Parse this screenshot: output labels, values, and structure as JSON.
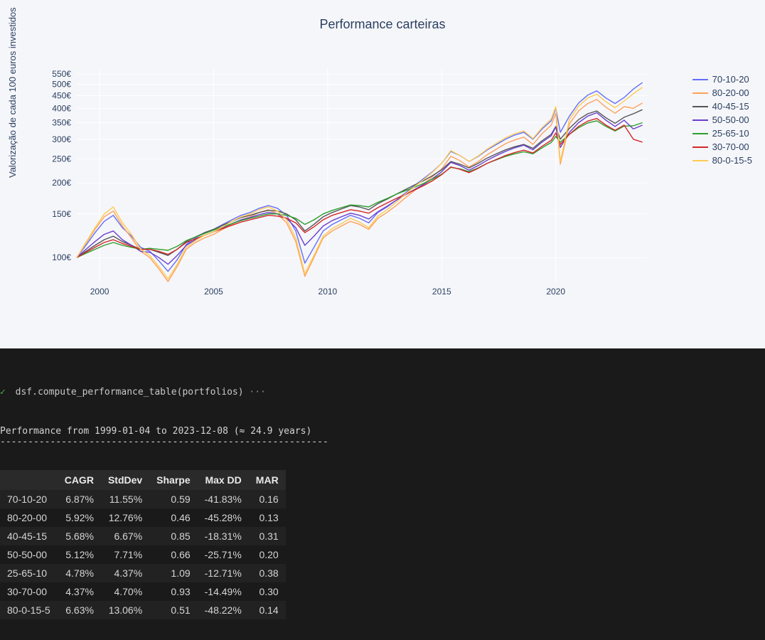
{
  "chart": {
    "type": "line",
    "title": "Performance carteiras",
    "ylabel": "Valorização de cada 100 euros investidos",
    "title_fontsize": 18,
    "label_fontsize": 13,
    "tick_fontsize": 12,
    "background_color": "#f5f6fa",
    "plot_background": "#f5f6fa",
    "grid_color": "#ffffff",
    "text_color": "#2a3f5f",
    "yscale": "log",
    "ylim": [
      80,
      580
    ],
    "yticks": [
      100,
      150,
      200,
      250,
      300,
      350,
      400,
      450,
      500,
      550
    ],
    "yticklabels": [
      "100€",
      "150€",
      "200€",
      "250€",
      "300€",
      "350€",
      "400€",
      "450€",
      "500€",
      "550€"
    ],
    "xlim": [
      1999,
      2024
    ],
    "xticks": [
      2000,
      2005,
      2010,
      2015,
      2020
    ],
    "xticklabels": [
      "2000",
      "2005",
      "2010",
      "2015",
      "2020"
    ],
    "line_width": 1.4,
    "series": [
      {
        "name": "70-10-20",
        "color": "#636efa",
        "x": [
          1999.0,
          1999.4,
          1999.8,
          2000.2,
          2000.6,
          2001.0,
          2001.4,
          2001.8,
          2002.2,
          2002.6,
          2003.0,
          2003.4,
          2003.8,
          2004.2,
          2004.6,
          2005.0,
          2005.4,
          2005.8,
          2006.2,
          2006.6,
          2007.0,
          2007.4,
          2007.8,
          2008.2,
          2008.6,
          2009.0,
          2009.4,
          2009.8,
          2010.2,
          2010.6,
          2011.0,
          2011.4,
          2011.8,
          2012.2,
          2012.6,
          2013.0,
          2013.4,
          2013.8,
          2014.2,
          2014.6,
          2015.0,
          2015.4,
          2015.8,
          2016.2,
          2016.6,
          2017.0,
          2017.4,
          2017.8,
          2018.2,
          2018.6,
          2019.0,
          2019.4,
          2019.8,
          2020.0,
          2020.2,
          2020.6,
          2021.0,
          2021.4,
          2021.8,
          2022.2,
          2022.6,
          2023.0,
          2023.4,
          2023.8
        ],
        "y": [
          100,
          112,
          126,
          140,
          148,
          132,
          122,
          110,
          106,
          97,
          88,
          98,
          113,
          120,
          126,
          130,
          136,
          142,
          148,
          152,
          158,
          162,
          158,
          148,
          128,
          95,
          110,
          128,
          136,
          142,
          148,
          144,
          138,
          152,
          160,
          170,
          182,
          195,
          208,
          222,
          240,
          268,
          258,
          244,
          256,
          272,
          286,
          300,
          312,
          320,
          300,
          330,
          356,
          400,
          320,
          372,
          420,
          452,
          470,
          440,
          418,
          442,
          478,
          508
        ]
      },
      {
        "name": "80-20-00",
        "color": "#ef553b",
        "x": [
          1999.0,
          1999.4,
          1999.8,
          2000.2,
          2000.6,
          2001.0,
          2001.4,
          2001.8,
          2002.2,
          2002.6,
          2003.0,
          2003.4,
          2003.8,
          2004.2,
          2004.6,
          2005.0,
          2005.4,
          2005.8,
          2006.2,
          2006.6,
          2007.0,
          2007.4,
          2007.8,
          2008.2,
          2008.6,
          2009.0,
          2009.4,
          2009.8,
          2010.2,
          2010.6,
          2011.0,
          2011.4,
          2011.8,
          2012.2,
          2012.6,
          2013.0,
          2013.4,
          2013.8,
          2014.2,
          2014.6,
          2015.0,
          2015.4,
          2015.8,
          2016.2,
          2016.6,
          2017.0,
          2017.4,
          2017.8,
          2018.2,
          2018.6,
          2019.0,
          2019.4,
          2019.8,
          2020.0,
          2020.2,
          2020.6,
          2021.0,
          2021.4,
          2021.8,
          2022.2,
          2022.6,
          2023.0,
          2023.4,
          2023.8
        ],
        "y": [
          100,
          114,
          130,
          146,
          154,
          134,
          120,
          106,
          100,
          90,
          80,
          92,
          108,
          115,
          120,
          124,
          130,
          136,
          142,
          146,
          152,
          156,
          150,
          138,
          116,
          84,
          100,
          120,
          128,
          134,
          140,
          136,
          130,
          144,
          152,
          162,
          174,
          186,
          198,
          212,
          228,
          256,
          246,
          232,
          244,
          260,
          274,
          288,
          298,
          306,
          286,
          316,
          342,
          382,
          238,
          346,
          390,
          418,
          434,
          404,
          382,
          406,
          400,
          420
        ]
      },
      {
        "name": "40-45-15",
        "color": "#00cc96",
        "x": [
          1999.0,
          1999.4,
          1999.8,
          2000.2,
          2000.6,
          2001.0,
          2001.4,
          2001.8,
          2002.2,
          2002.6,
          2003.0,
          2003.4,
          2003.8,
          2004.2,
          2004.6,
          2005.0,
          2005.4,
          2005.8,
          2006.2,
          2006.6,
          2007.0,
          2007.4,
          2007.8,
          2008.2,
          2008.6,
          2009.0,
          2009.4,
          2009.8,
          2010.2,
          2010.6,
          2011.0,
          2011.4,
          2011.8,
          2012.2,
          2012.6,
          2013.0,
          2013.4,
          2013.8,
          2014.2,
          2014.6,
          2015.0,
          2015.4,
          2015.8,
          2016.2,
          2016.6,
          2017.0,
          2017.4,
          2017.8,
          2018.2,
          2018.6,
          2019.0,
          2019.4,
          2019.8,
          2020.0,
          2020.2,
          2020.6,
          2021.0,
          2021.4,
          2021.8,
          2022.2,
          2022.6,
          2023.0,
          2023.4,
          2023.8
        ],
        "y": [
          100,
          106,
          112,
          118,
          122,
          116,
          112,
          108,
          108,
          105,
          102,
          108,
          116,
          121,
          126,
          130,
          135,
          140,
          145,
          148,
          152,
          155,
          154,
          150,
          142,
          128,
          136,
          146,
          152,
          157,
          162,
          160,
          156,
          165,
          172,
          180,
          188,
          196,
          204,
          214,
          226,
          244,
          238,
          230,
          240,
          252,
          262,
          272,
          280,
          286,
          276,
          296,
          314,
          338,
          300,
          332,
          360,
          380,
          390,
          366,
          348,
          368,
          380,
          395
        ]
      },
      {
        "name": "50-50-00",
        "color": "#ab63fa",
        "x": [
          1999.0,
          1999.4,
          1999.8,
          2000.2,
          2000.6,
          2001.0,
          2001.4,
          2001.8,
          2002.2,
          2002.6,
          2003.0,
          2003.4,
          2003.8,
          2004.2,
          2004.6,
          2005.0,
          2005.4,
          2005.8,
          2006.2,
          2006.6,
          2007.0,
          2007.4,
          2007.8,
          2008.2,
          2008.6,
          2009.0,
          2009.4,
          2009.8,
          2010.2,
          2010.6,
          2011.0,
          2011.4,
          2011.8,
          2012.2,
          2012.6,
          2013.0,
          2013.4,
          2013.8,
          2014.2,
          2014.6,
          2015.0,
          2015.4,
          2015.8,
          2016.2,
          2016.6,
          2017.0,
          2017.4,
          2017.8,
          2018.2,
          2018.6,
          2019.0,
          2019.4,
          2019.8,
          2020.0,
          2020.2,
          2020.6,
          2021.0,
          2021.4,
          2021.8,
          2022.2,
          2022.6,
          2023.0,
          2023.4,
          2023.8
        ],
        "y": [
          100,
          108,
          116,
          124,
          128,
          118,
          112,
          106,
          105,
          100,
          94,
          102,
          112,
          118,
          123,
          127,
          132,
          137,
          142,
          145,
          149,
          152,
          150,
          144,
          132,
          112,
          122,
          134,
          141,
          146,
          151,
          148,
          143,
          153,
          161,
          170,
          179,
          188,
          197,
          208,
          222,
          242,
          235,
          225,
          235,
          247,
          258,
          268,
          277,
          284,
          272,
          292,
          310,
          336,
          278,
          320,
          350,
          372,
          384,
          358,
          338,
          358,
          330,
          342
        ]
      },
      {
        "name": "25-65-10",
        "color": "#19d3f3",
        "x": [
          1999.0,
          1999.4,
          1999.8,
          2000.2,
          2000.6,
          2001.0,
          2001.4,
          2001.8,
          2002.2,
          2002.6,
          2003.0,
          2003.4,
          2003.8,
          2004.2,
          2004.6,
          2005.0,
          2005.4,
          2005.8,
          2006.2,
          2006.6,
          2007.0,
          2007.4,
          2007.8,
          2008.2,
          2008.6,
          2009.0,
          2009.4,
          2009.8,
          2010.2,
          2010.6,
          2011.0,
          2011.4,
          2011.8,
          2012.2,
          2012.6,
          2013.0,
          2013.4,
          2013.8,
          2014.2,
          2014.6,
          2015.0,
          2015.4,
          2015.8,
          2016.2,
          2016.6,
          2017.0,
          2017.4,
          2017.8,
          2018.2,
          2018.6,
          2019.0,
          2019.4,
          2019.8,
          2020.0,
          2020.2,
          2020.6,
          2021.0,
          2021.4,
          2021.8,
          2022.2,
          2022.6,
          2023.0,
          2023.4,
          2023.8
        ],
        "y": [
          100,
          104,
          108,
          112,
          115,
          112,
          110,
          108,
          109,
          108,
          107,
          111,
          117,
          121,
          125,
          129,
          133,
          137,
          141,
          144,
          147,
          150,
          150,
          148,
          144,
          136,
          142,
          150,
          155,
          159,
          163,
          162,
          160,
          167,
          173,
          180,
          186,
          192,
          199,
          207,
          217,
          231,
          228,
          222,
          230,
          240,
          248,
          256,
          262,
          267,
          262,
          277,
          291,
          308,
          292,
          314,
          334,
          349,
          356,
          338,
          324,
          339,
          340,
          350
        ]
      },
      {
        "name": "30-70-00",
        "color": "#e763fa",
        "x": [
          1999.0,
          1999.4,
          1999.8,
          2000.2,
          2000.6,
          2001.0,
          2001.4,
          2001.8,
          2002.2,
          2002.6,
          2003.0,
          2003.4,
          2003.8,
          2004.2,
          2004.6,
          2005.0,
          2005.4,
          2005.8,
          2006.2,
          2006.6,
          2007.0,
          2007.4,
          2007.8,
          2008.2,
          2008.6,
          2009.0,
          2009.4,
          2009.8,
          2010.2,
          2010.6,
          2011.0,
          2011.4,
          2011.8,
          2012.2,
          2012.6,
          2013.0,
          2013.4,
          2013.8,
          2014.2,
          2014.6,
          2015.0,
          2015.4,
          2015.8,
          2016.2,
          2016.6,
          2017.0,
          2017.4,
          2017.8,
          2018.2,
          2018.6,
          2019.0,
          2019.4,
          2019.8,
          2020.0,
          2020.2,
          2020.6,
          2021.0,
          2021.4,
          2021.8,
          2022.2,
          2022.6,
          2023.0,
          2023.4,
          2023.8
        ],
        "y": [
          100,
          105,
          110,
          115,
          118,
          114,
          111,
          108,
          108,
          106,
          103,
          108,
          115,
          119,
          123,
          127,
          131,
          135,
          139,
          142,
          145,
          148,
          147,
          144,
          138,
          126,
          133,
          142,
          148,
          152,
          156,
          154,
          151,
          159,
          166,
          173,
          180,
          187,
          195,
          204,
          216,
          232,
          227,
          220,
          229,
          240,
          249,
          258,
          265,
          271,
          264,
          281,
          297,
          318,
          286,
          314,
          338,
          355,
          364,
          342,
          326,
          342,
          300,
          292
        ]
      },
      {
        "name": "80-0-15-5",
        "color": "#fecb52",
        "x": [
          1999.0,
          1999.4,
          1999.8,
          2000.2,
          2000.6,
          2001.0,
          2001.4,
          2001.8,
          2002.2,
          2002.6,
          2003.0,
          2003.4,
          2003.8,
          2004.2,
          2004.6,
          2005.0,
          2005.4,
          2005.8,
          2006.2,
          2006.6,
          2007.0,
          2007.4,
          2007.8,
          2008.2,
          2008.6,
          2009.0,
          2009.4,
          2009.8,
          2010.2,
          2010.6,
          2011.0,
          2011.4,
          2011.8,
          2012.2,
          2012.6,
          2013.0,
          2013.4,
          2013.8,
          2014.2,
          2014.6,
          2015.0,
          2015.4,
          2015.8,
          2016.2,
          2016.6,
          2017.0,
          2017.4,
          2017.8,
          2018.2,
          2018.6,
          2019.0,
          2019.4,
          2019.8,
          2020.0,
          2020.2,
          2020.6,
          2021.0,
          2021.4,
          2021.8,
          2022.2,
          2022.6,
          2023.0,
          2023.4,
          2023.8
        ],
        "y": [
          100,
          115,
          132,
          150,
          160,
          138,
          124,
          108,
          102,
          92,
          82,
          94,
          110,
          117,
          123,
          127,
          133,
          140,
          146,
          150,
          156,
          160,
          154,
          142,
          120,
          86,
          102,
          122,
          131,
          137,
          144,
          139,
          132,
          147,
          156,
          167,
          180,
          193,
          206,
          221,
          240,
          270,
          258,
          244,
          257,
          274,
          289,
          304,
          316,
          324,
          302,
          334,
          362,
          406,
          244,
          360,
          408,
          440,
          456,
          425,
          402,
          428,
          458,
          486
        ]
      }
    ],
    "legend_colors_override": {
      "70-10-20": "#636efa",
      "80-20-00": "#ffa15a",
      "40-45-15": "#555555",
      "50-50-00": "#6a3fcf",
      "25-65-10": "#2ca02c",
      "30-70-00": "#d62728",
      "80-0-15-5": "#fecb52"
    }
  },
  "terminal": {
    "check": "✓",
    "command": "dsf.compute_performance_table(portfolios)",
    "ellipsis": "···",
    "header": "Performance from 1999-01-04 to 2023-12-08 (≈ 24.9 years)",
    "divider": "-----------------------------------------------------------"
  },
  "table": {
    "columns": [
      "",
      "CAGR",
      "StdDev",
      "Sharpe",
      "Max DD",
      "MAR"
    ],
    "rows": [
      [
        "70-10-20",
        "6.87%",
        "11.55%",
        "0.59",
        "-41.83%",
        "0.16"
      ],
      [
        "80-20-00",
        "5.92%",
        "12.76%",
        "0.46",
        "-45.28%",
        "0.13"
      ],
      [
        "40-45-15",
        "5.68%",
        "6.67%",
        "0.85",
        "-18.31%",
        "0.31"
      ],
      [
        "50-50-00",
        "5.12%",
        "7.71%",
        "0.66",
        "-25.71%",
        "0.20"
      ],
      [
        "25-65-10",
        "4.78%",
        "4.37%",
        "1.09",
        "-12.71%",
        "0.38"
      ],
      [
        "30-70-00",
        "4.37%",
        "4.70%",
        "0.93",
        "-14.49%",
        "0.30"
      ],
      [
        "80-0-15-5",
        "6.63%",
        "13.06%",
        "0.51",
        "-48.22%",
        "0.14"
      ]
    ]
  }
}
